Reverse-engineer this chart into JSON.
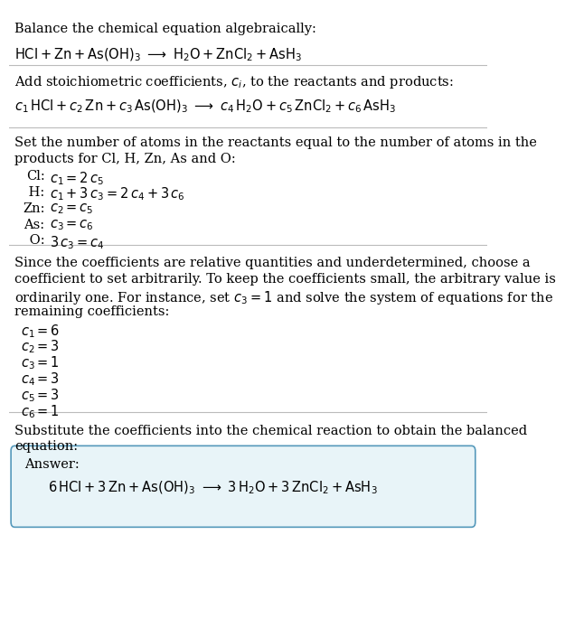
{
  "bg_color": "#ffffff",
  "text_color": "#000000",
  "box_bg_color": "#e8f4f8",
  "box_border_color": "#5599bb",
  "font_size": 10.5,
  "title1": "Balance the chemical equation algebraically:",
  "eq1": "$\\mathrm{HCl + Zn + As(OH)_{3} \\ {\\longrightarrow} \\ H_{2}O + ZnCl_{2} + AsH_{3}}$",
  "title2": "Add stoichiometric coefficients, $c_i$, to the reactants and products:",
  "eq2": "$c_1\\,\\mathrm{HCl} + c_2\\,\\mathrm{Zn} + c_3\\,\\mathrm{As(OH)_3} \\ {\\longrightarrow} \\ c_4\\,\\mathrm{H_2O} + c_5\\,\\mathrm{ZnCl_2} + c_6\\,\\mathrm{AsH_3}$",
  "title3a": "Set the number of atoms in the reactants equal to the number of atoms in the",
  "title3b": "products for Cl, H, Zn, As and O:",
  "atom_labels": [
    "Cl:",
    " H:",
    "Zn:",
    "As:",
    " O:"
  ],
  "atom_eqs": [
    "$c_1 = 2\\,c_5$",
    "$c_1 + 3\\,c_3 = 2\\,c_4 + 3\\,c_6$",
    "$c_2 = c_5$",
    "$c_3 = c_6$",
    "$3\\,c_3 = c_4$"
  ],
  "title4a": "Since the coefficients are relative quantities and underdetermined, choose a",
  "title4b": "coefficient to set arbitrarily. To keep the coefficients small, the arbitrary value is",
  "title4c": "ordinarily one. For instance, set $c_3 = 1$ and solve the system of equations for the",
  "title4d": "remaining coefficients:",
  "coeff_eqs": [
    "$c_1 = 6$",
    "$c_2 = 3$",
    "$c_3 = 1$",
    "$c_4 = 3$",
    "$c_5 = 3$",
    "$c_6 = 1$"
  ],
  "title5a": "Substitute the coefficients into the chemical reaction to obtain the balanced",
  "title5b": "equation:",
  "answer_label": "Answer:",
  "answer_eq": "$\\mathrm{6\\,HCl + 3\\,Zn + As(OH)_{3} \\ {\\longrightarrow} \\ 3\\,H_{2}O + 3\\,ZnCl_{2} + AsH_{3}}$",
  "hline_color": "#bbbbbb",
  "hline_lw": 0.8
}
